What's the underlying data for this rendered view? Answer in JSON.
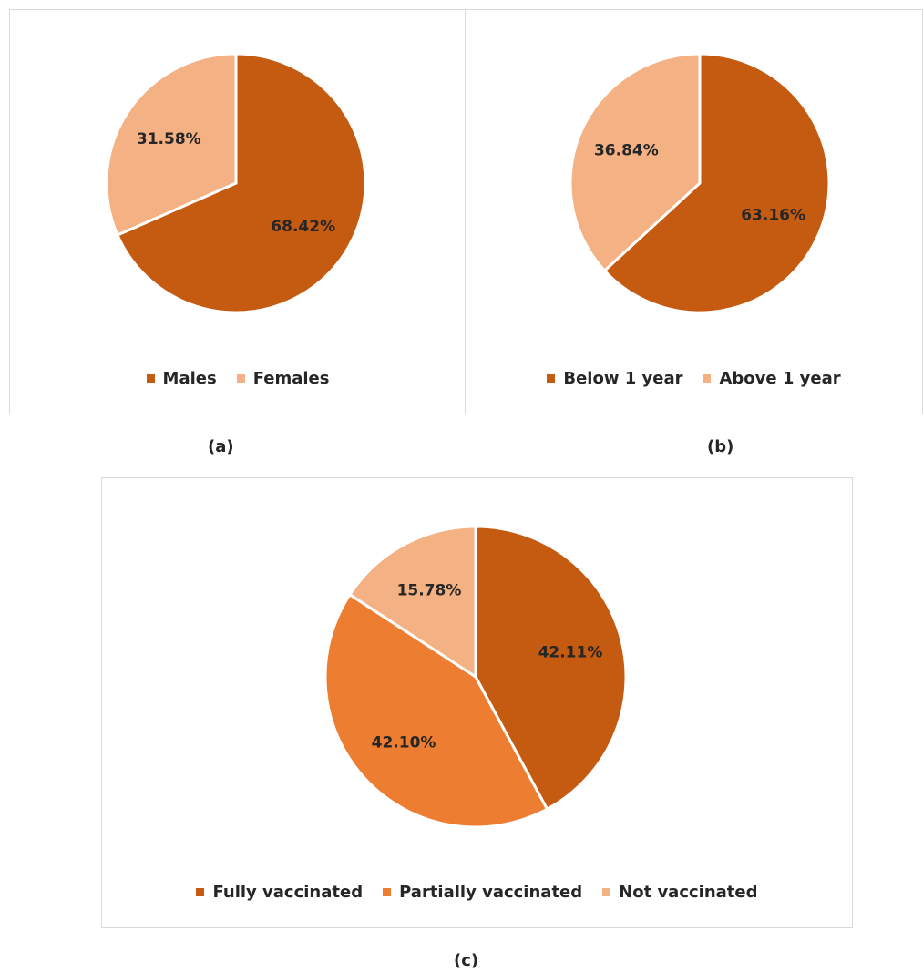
{
  "chart_data": [
    {
      "type": "pie",
      "title": "",
      "categories": [
        "Males",
        "Females"
      ],
      "values": [
        68.42,
        31.58
      ],
      "data_labels": [
        "68.42%",
        "31.58%"
      ],
      "colors": [
        "#C55A11",
        "#F4B183"
      ],
      "legend": "bottom",
      "caption": "(a)"
    },
    {
      "type": "pie",
      "title": "",
      "categories": [
        "Below 1 year",
        "Above 1 year"
      ],
      "values": [
        63.16,
        36.84
      ],
      "data_labels": [
        "63.16%",
        "36.84%"
      ],
      "colors": [
        "#C55A11",
        "#F4B183"
      ],
      "legend": "bottom",
      "caption": "(b)"
    },
    {
      "type": "pie",
      "title": "",
      "categories": [
        "Fully vaccinated",
        "Partially vaccinated",
        "Not vaccinated"
      ],
      "values": [
        42.11,
        42.1,
        15.78
      ],
      "data_labels": [
        "42.11%",
        "42.10%",
        "15.78%"
      ],
      "colors": [
        "#C55A11",
        "#ED7D31",
        "#F4B183"
      ],
      "legend": "bottom",
      "caption": "(c)"
    }
  ]
}
